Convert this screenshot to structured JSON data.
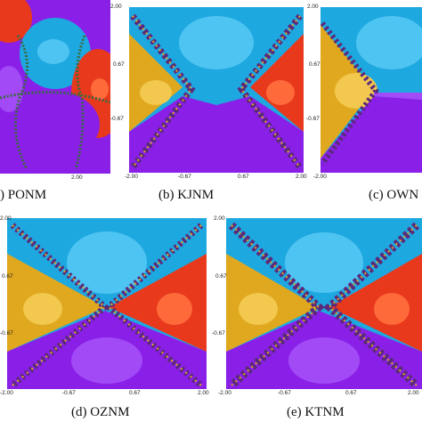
{
  "ticks": {
    "max": "2.00",
    "hi": "0.67",
    "lo": "-0.67",
    "min": "-2.00"
  },
  "captions": [
    {
      "letter": "(a)",
      "name": "PONM",
      "shown": ") PONM"
    },
    {
      "letter": "(b)",
      "name": "KJNM",
      "shown": "(b)  KJNM"
    },
    {
      "letter": "(c)",
      "name": "OWNM",
      "shown": "(c)  OWN"
    },
    {
      "letter": "(d)",
      "name": "OZNM",
      "shown": "(d)  OZNM"
    },
    {
      "letter": "(e)",
      "name": "KTNM",
      "shown": "(e)  KTNM"
    }
  ],
  "colors": {
    "sky": "#1ea8e0",
    "sky_light": "#4ec4f2",
    "gold": "#e0a81e",
    "gold_light": "#f2c84e",
    "red": "#e8391c",
    "red_light": "#ff6a3a",
    "violet": "#8a20e8",
    "violet_light": "#a24af6",
    "boundary": "#5b2a7a"
  }
}
